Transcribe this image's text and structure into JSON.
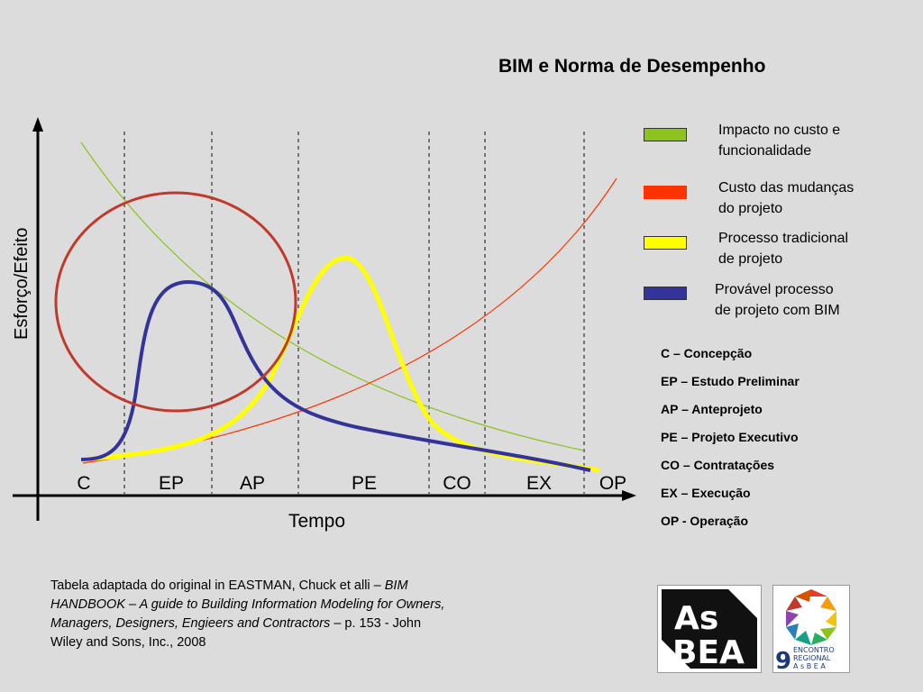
{
  "title": "BIM e Norma de Desempenho",
  "axes": {
    "y_label": "Esforço/Efeito",
    "x_label": "Tempo"
  },
  "phases": [
    "C",
    "EP",
    "AP",
    "PE",
    "CO",
    "EX",
    "OP"
  ],
  "legend": [
    {
      "line1": "Impacto no custo e",
      "line2": "funcionalidade",
      "color": "#8dc21f"
    },
    {
      "line1": "Custo das mudanças",
      "line2": "do projeto",
      "color": "#ff3300"
    },
    {
      "line1": "Processo tradicional",
      "line2": "de projeto",
      "color": "#ffff00"
    },
    {
      "line1": "Provável processo",
      "line2": "de projeto com BIM",
      "color": "#333399"
    }
  ],
  "abbreviations": [
    "C – Concepção",
    "EP – Estudo Preliminar",
    "AP – Anteprojeto",
    "PE – Projeto Executivo",
    "CO – Contratações",
    "EX – Execução",
    "OP - Operação"
  ],
  "caption": {
    "part1": "Tabela adaptada do original in EASTMAN, Chuck et alli – ",
    "italic": "BIM HANDBOOK – A guide to Building Information Modeling for Owners, Managers, Designers, Engieers and Contractors",
    "part2": " – p. 153 - John Wiley and Sons, Inc., 2008"
  },
  "logos": {
    "asbea": "AsBEA",
    "encontro_number": "9",
    "encontro_text1": "ENCONTRO",
    "encontro_text2": "REGIONAL",
    "encontro_text3": "A s B E A"
  },
  "colors": {
    "circle": "#c0392b",
    "green": "#8dc21f",
    "red": "#ff3300",
    "yellow": "#ffff00",
    "blue": "#333399"
  }
}
